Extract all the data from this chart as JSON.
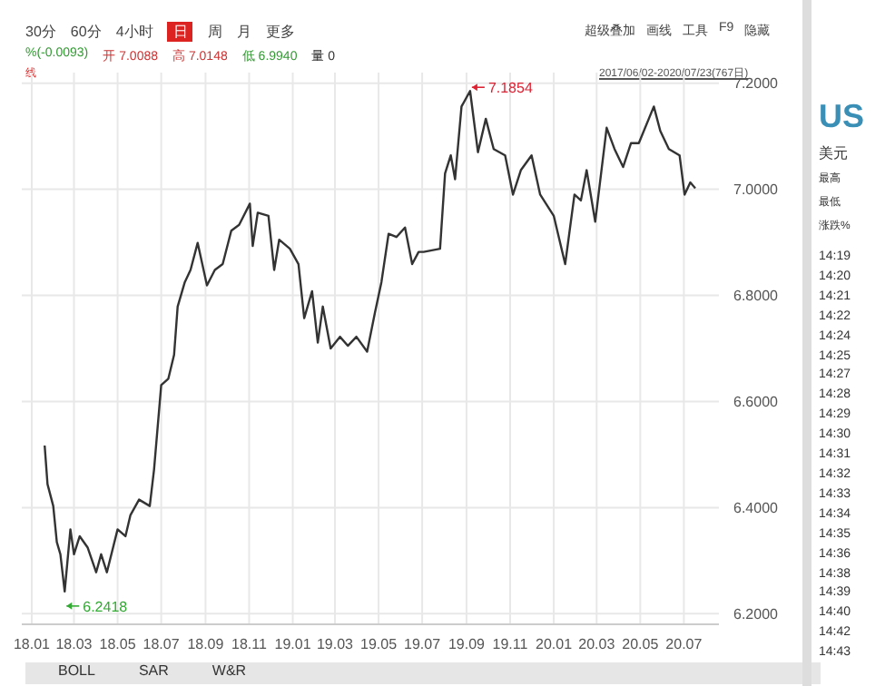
{
  "chart_data": {
    "type": "line",
    "color": "#333333",
    "grid": true,
    "marker": "none",
    "line_style": "solid",
    "x": [
      "2018-01-19",
      "2018-01-23",
      "2018-01-31",
      "2018-02-05",
      "2018-02-10",
      "2018-02-16",
      "2018-02-24",
      "2018-03-01",
      "2018-03-09",
      "2018-03-20",
      "2018-04-01",
      "2018-04-08",
      "2018-04-16",
      "2018-05-01",
      "2018-05-12",
      "2018-05-19",
      "2018-05-31",
      "2018-06-15",
      "2018-06-21",
      "2018-07-01",
      "2018-07-11",
      "2018-07-19",
      "2018-07-24",
      "2018-08-03",
      "2018-08-11",
      "2018-08-21",
      "2018-09-03",
      "2018-09-14",
      "2018-09-25",
      "2018-10-07",
      "2018-10-18",
      "2018-11-02",
      "2018-11-06",
      "2018-11-13",
      "2018-11-28",
      "2018-12-06",
      "2018-12-13",
      "2018-12-28",
      "2019-01-09",
      "2019-01-17",
      "2019-01-28",
      "2019-02-05",
      "2019-02-12",
      "2019-02-23",
      "2019-03-08",
      "2019-03-19",
      "2019-03-31",
      "2019-04-15",
      "2019-04-26",
      "2019-05-05",
      "2019-05-15",
      "2019-05-26",
      "2019-06-07",
      "2019-06-17",
      "2019-06-26",
      "2019-07-03",
      "2019-07-26",
      "2019-08-02",
      "2019-08-10",
      "2019-08-16",
      "2019-08-25",
      "2019-09-06",
      "2019-09-17",
      "2019-09-28",
      "2019-10-09",
      "2019-10-25",
      "2019-11-05",
      "2019-11-16",
      "2019-12-01",
      "2019-12-13",
      "2020-01-01",
      "2020-01-17",
      "2020-01-30",
      "2020-02-08",
      "2020-02-16",
      "2020-02-28",
      "2020-03-15",
      "2020-03-26",
      "2020-04-07",
      "2020-04-18",
      "2020-04-29",
      "2020-05-20",
      "2020-05-29",
      "2020-06-10",
      "2020-06-25",
      "2020-07-02",
      "2020-07-10",
      "2020-07-17"
    ],
    "values": [
      6.517,
      6.444,
      6.403,
      6.335,
      6.312,
      6.2418,
      6.359,
      6.312,
      6.346,
      6.325,
      6.278,
      6.312,
      6.278,
      6.359,
      6.346,
      6.386,
      6.415,
      6.403,
      6.472,
      6.631,
      6.643,
      6.688,
      6.779,
      6.825,
      6.848,
      6.899,
      6.819,
      6.848,
      6.859,
      6.922,
      6.933,
      6.973,
      6.893,
      6.956,
      6.95,
      6.848,
      6.905,
      6.888,
      6.859,
      6.757,
      6.808,
      6.711,
      6.779,
      6.7,
      6.722,
      6.705,
      6.722,
      6.694,
      6.768,
      6.825,
      6.916,
      6.91,
      6.928,
      6.859,
      6.882,
      6.882,
      6.888,
      7.03,
      7.064,
      7.019,
      7.156,
      7.1854,
      7.07,
      7.133,
      7.076,
      7.064,
      6.99,
      7.036,
      7.064,
      6.99,
      6.95,
      6.859,
      6.99,
      6.979,
      7.036,
      6.939,
      7.116,
      7.076,
      7.042,
      7.087,
      7.087,
      7.156,
      7.11,
      7.076,
      7.064,
      6.99,
      7.013,
      7.002
    ],
    "xlim": [
      "2017-12-18",
      "2020-08-19"
    ],
    "xticks": [
      {
        "value": "2018-01-01",
        "label": "18.01"
      },
      {
        "value": "2018-03-01",
        "label": "18.03"
      },
      {
        "value": "2018-05-01",
        "label": "18.05"
      },
      {
        "value": "2018-07-01",
        "label": "18.07"
      },
      {
        "value": "2018-09-01",
        "label": "18.09"
      },
      {
        "value": "2018-11-01",
        "label": "18.11"
      },
      {
        "value": "2019-01-01",
        "label": "19.01"
      },
      {
        "value": "2019-03-01",
        "label": "19.03"
      },
      {
        "value": "2019-05-01",
        "label": "19.05"
      },
      {
        "value": "2019-07-01",
        "label": "19.07"
      },
      {
        "value": "2019-09-01",
        "label": "19.09"
      },
      {
        "value": "2019-11-01",
        "label": "19.11"
      },
      {
        "value": "2020-01-01",
        "label": "20.01"
      },
      {
        "value": "2020-03-01",
        "label": "20.03"
      },
      {
        "value": "2020-05-01",
        "label": "20.05"
      },
      {
        "value": "2020-07-01",
        "label": "20.07"
      }
    ],
    "ylim": [
      6.18,
      7.22
    ],
    "yticks": [
      {
        "value": 6.2,
        "label": "6.2000"
      },
      {
        "value": 6.4,
        "label": "6.4000"
      },
      {
        "value": 6.6,
        "label": "6.6000"
      },
      {
        "value": 6.8,
        "label": "6.8000"
      },
      {
        "value": 7.0,
        "label": "7.0000"
      },
      {
        "value": 7.2,
        "label": "7.2000"
      }
    ],
    "annotations": [
      "30分",
      "60分",
      "4小时",
      "日",
      "周",
      "月",
      "更多",
      "超级叠加",
      "画线",
      "工具",
      "F9",
      "隐藏",
      "%(-0.0093)",
      "开 7.0088",
      "高 7.0148",
      "低 6.9940",
      "量 0",
      "线",
      "2017/06/02-2020/07/23(767日)",
      "BOLL",
      "SAR",
      "W&R",
      "US",
      "美元",
      "最高",
      "最低",
      "涨跌%",
      "14:19",
      "14:20",
      "14:21",
      "14:22",
      "14:24",
      "14:25",
      "14:27",
      "14:28",
      "14:29",
      "14:30",
      "14:31",
      "14:32",
      "14:33",
      "14:34",
      "14:35",
      "14:36",
      "14:38",
      "14:39",
      "14:40",
      "14:42",
      "14:43",
      {
        "text": "7.1854",
        "x": "2019-09-06",
        "y": 7.1854
      },
      {
        "text": "6.2418",
        "x": "2018-02-16",
        "y": 6.2418
      }
    ]
  }
}
